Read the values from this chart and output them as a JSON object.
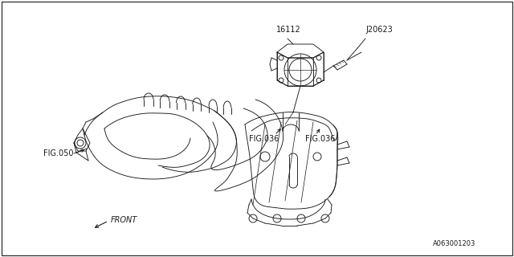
{
  "bg_color": "#ffffff",
  "line_color": "#1a1a1a",
  "label_16112": "16112",
  "label_J20623": "J20623",
  "label_FIG036_left": "FIG.036",
  "label_FIG036_right": "FIG.036",
  "label_FIG050": "FIG.050",
  "label_FRONT": "FRONT",
  "label_partnum": "A063001203",
  "fig_width": 6.4,
  "fig_height": 3.2,
  "dpi": 100,
  "lw": 0.65
}
